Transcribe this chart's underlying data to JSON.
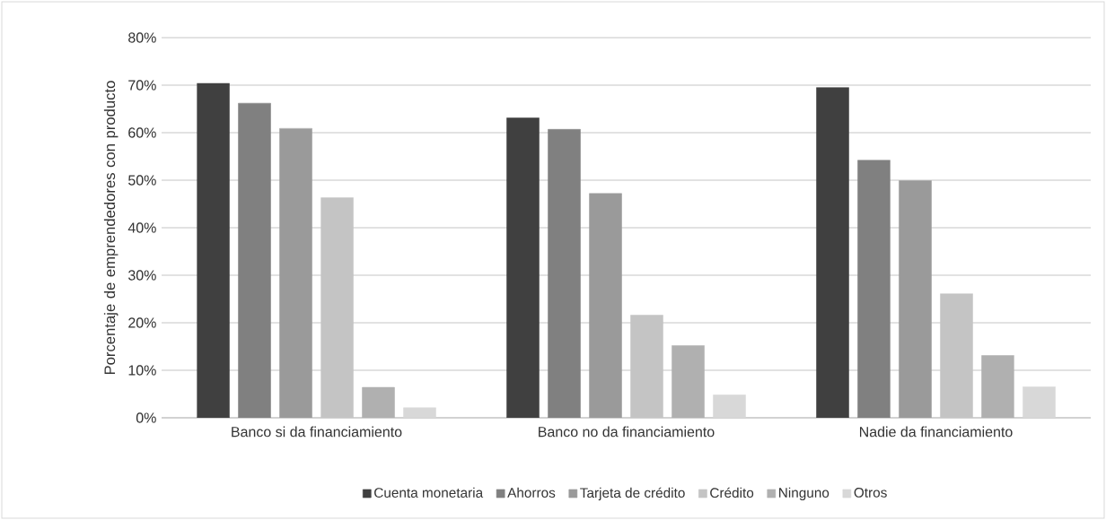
{
  "chart_data": {
    "type": "bar",
    "ylabel": "Porcentaje de emprendedores con producto",
    "categories": [
      "Banco si da financiamiento",
      "Banco no da financiamiento",
      "Nadie da financiamiento"
    ],
    "series": [
      {
        "name": "Cuenta monetaria",
        "color": "#404040",
        "values": [
          70.4,
          63.1,
          69.5
        ]
      },
      {
        "name": "Ahorros",
        "color": "#808080",
        "values": [
          66.2,
          60.7,
          54.2
        ]
      },
      {
        "name": "Tarjeta de crédito",
        "color": "#9a9a9a",
        "values": [
          60.9,
          47.2,
          49.9
        ]
      },
      {
        "name": "Crédito",
        "color": "#c4c4c4",
        "values": [
          46.3,
          21.6,
          26.1
        ]
      },
      {
        "name": "Ninguno",
        "color": "#b0b0b0",
        "values": [
          6.4,
          15.2,
          13.1
        ]
      },
      {
        "name": "Otros",
        "color": "#d8d8d8",
        "values": [
          2.1,
          4.8,
          6.5
        ]
      }
    ],
    "ylim": [
      0,
      80
    ],
    "yticks": [
      {
        "value": 0,
        "label": "0%"
      },
      {
        "value": 10,
        "label": "10%"
      },
      {
        "value": 20,
        "label": "20%"
      },
      {
        "value": 30,
        "label": "30%"
      },
      {
        "value": 40,
        "label": "40%"
      },
      {
        "value": 50,
        "label": "50%"
      },
      {
        "value": 60,
        "label": "60%"
      },
      {
        "value": 70,
        "label": "70%"
      },
      {
        "value": 80,
        "label": "80%"
      }
    ],
    "grid": "y",
    "legend": "bottom"
  }
}
